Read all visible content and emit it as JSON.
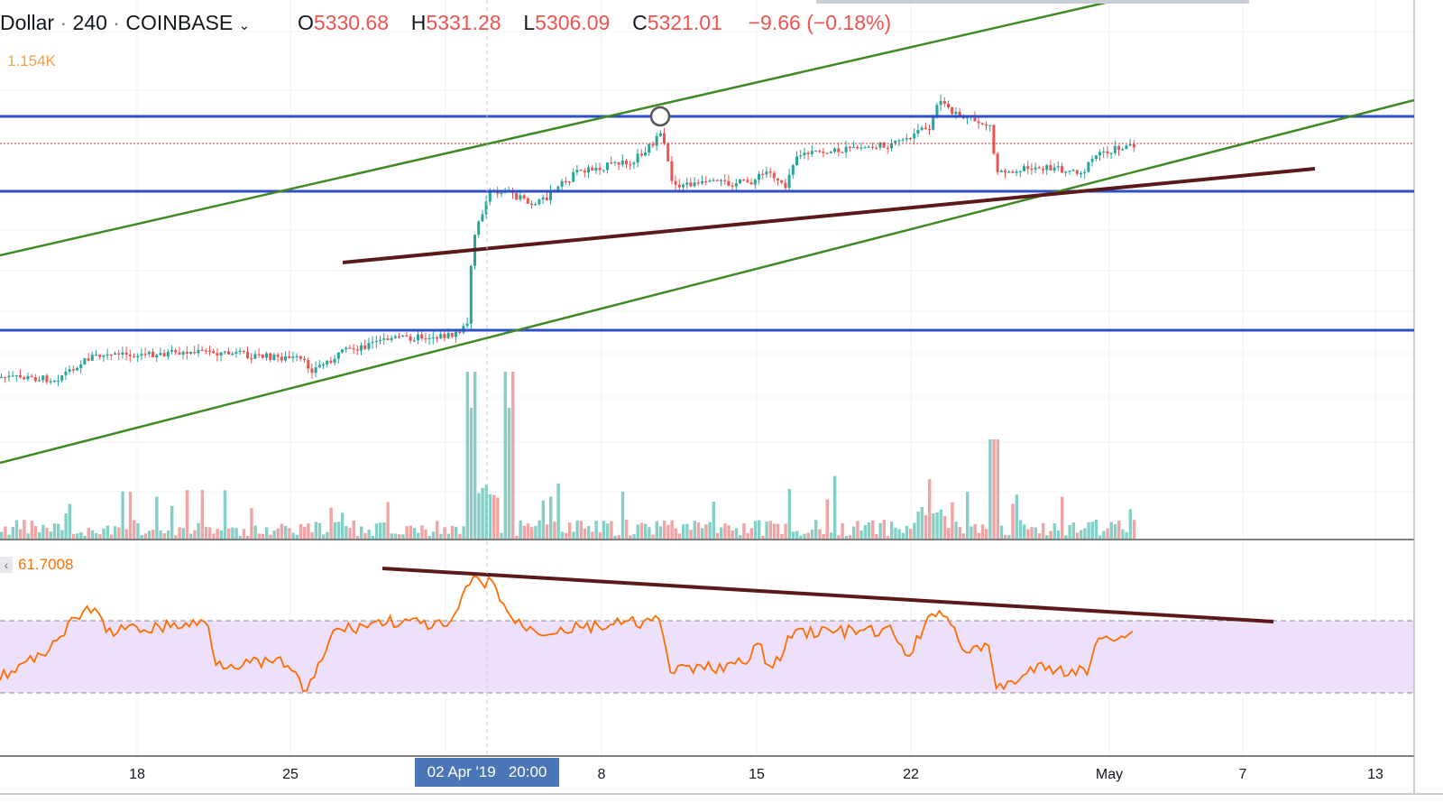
{
  "header": {
    "symbol_fragment": "Dollar",
    "interval": "240",
    "exchange": "COINBASE",
    "open_label": "O",
    "open": "5330.68",
    "high_label": "H",
    "high": "5331.28",
    "low_label": "L",
    "low": "5306.09",
    "close_label": "C",
    "close": "5321.01",
    "change": "−9.66 (−0.18%)"
  },
  "volume_indicator": {
    "value": "1.154K"
  },
  "rsi_indicator": {
    "value": "61.7008",
    "collapse_glyph": "‹"
  },
  "crosshair": {
    "date_label": "02 Apr '19",
    "time_label": "20:00"
  },
  "x_axis": {
    "ticks": [
      "18",
      "25",
      "8",
      "15",
      "22",
      "May",
      "7",
      "13"
    ]
  },
  "colors": {
    "up": "#26a69a",
    "down": "#ef5350",
    "horizontal_level": "#2f4fc9",
    "channel": "#3f8a24",
    "trend": "#5b1a1a",
    "rsi_line": "#ff6d00",
    "rsi_band": "#ede0fb",
    "price_line": "#e03030"
  },
  "chart_data": {
    "type": "candlestick",
    "symbol": "Dollar · 240 · COINBASE",
    "ohlc_last": {
      "open": 5330.68,
      "high": 5331.28,
      "low": 5306.09,
      "close": 5321.01,
      "change": -9.66,
      "change_pct": -0.18
    },
    "x_ticks": [
      "18",
      "25",
      "8",
      "15",
      "22",
      "May",
      "7",
      "13"
    ],
    "indicators": [
      {
        "name": "Volume",
        "last": "1.154K"
      },
      {
        "name": "RSI",
        "last": 61.7008
      }
    ],
    "drawings": [
      "3 horizontal support/resistance lines",
      "ascending channel (2 parallel lines)",
      "rising trend line on price",
      "falling trend line on RSI"
    ],
    "grid": true
  }
}
